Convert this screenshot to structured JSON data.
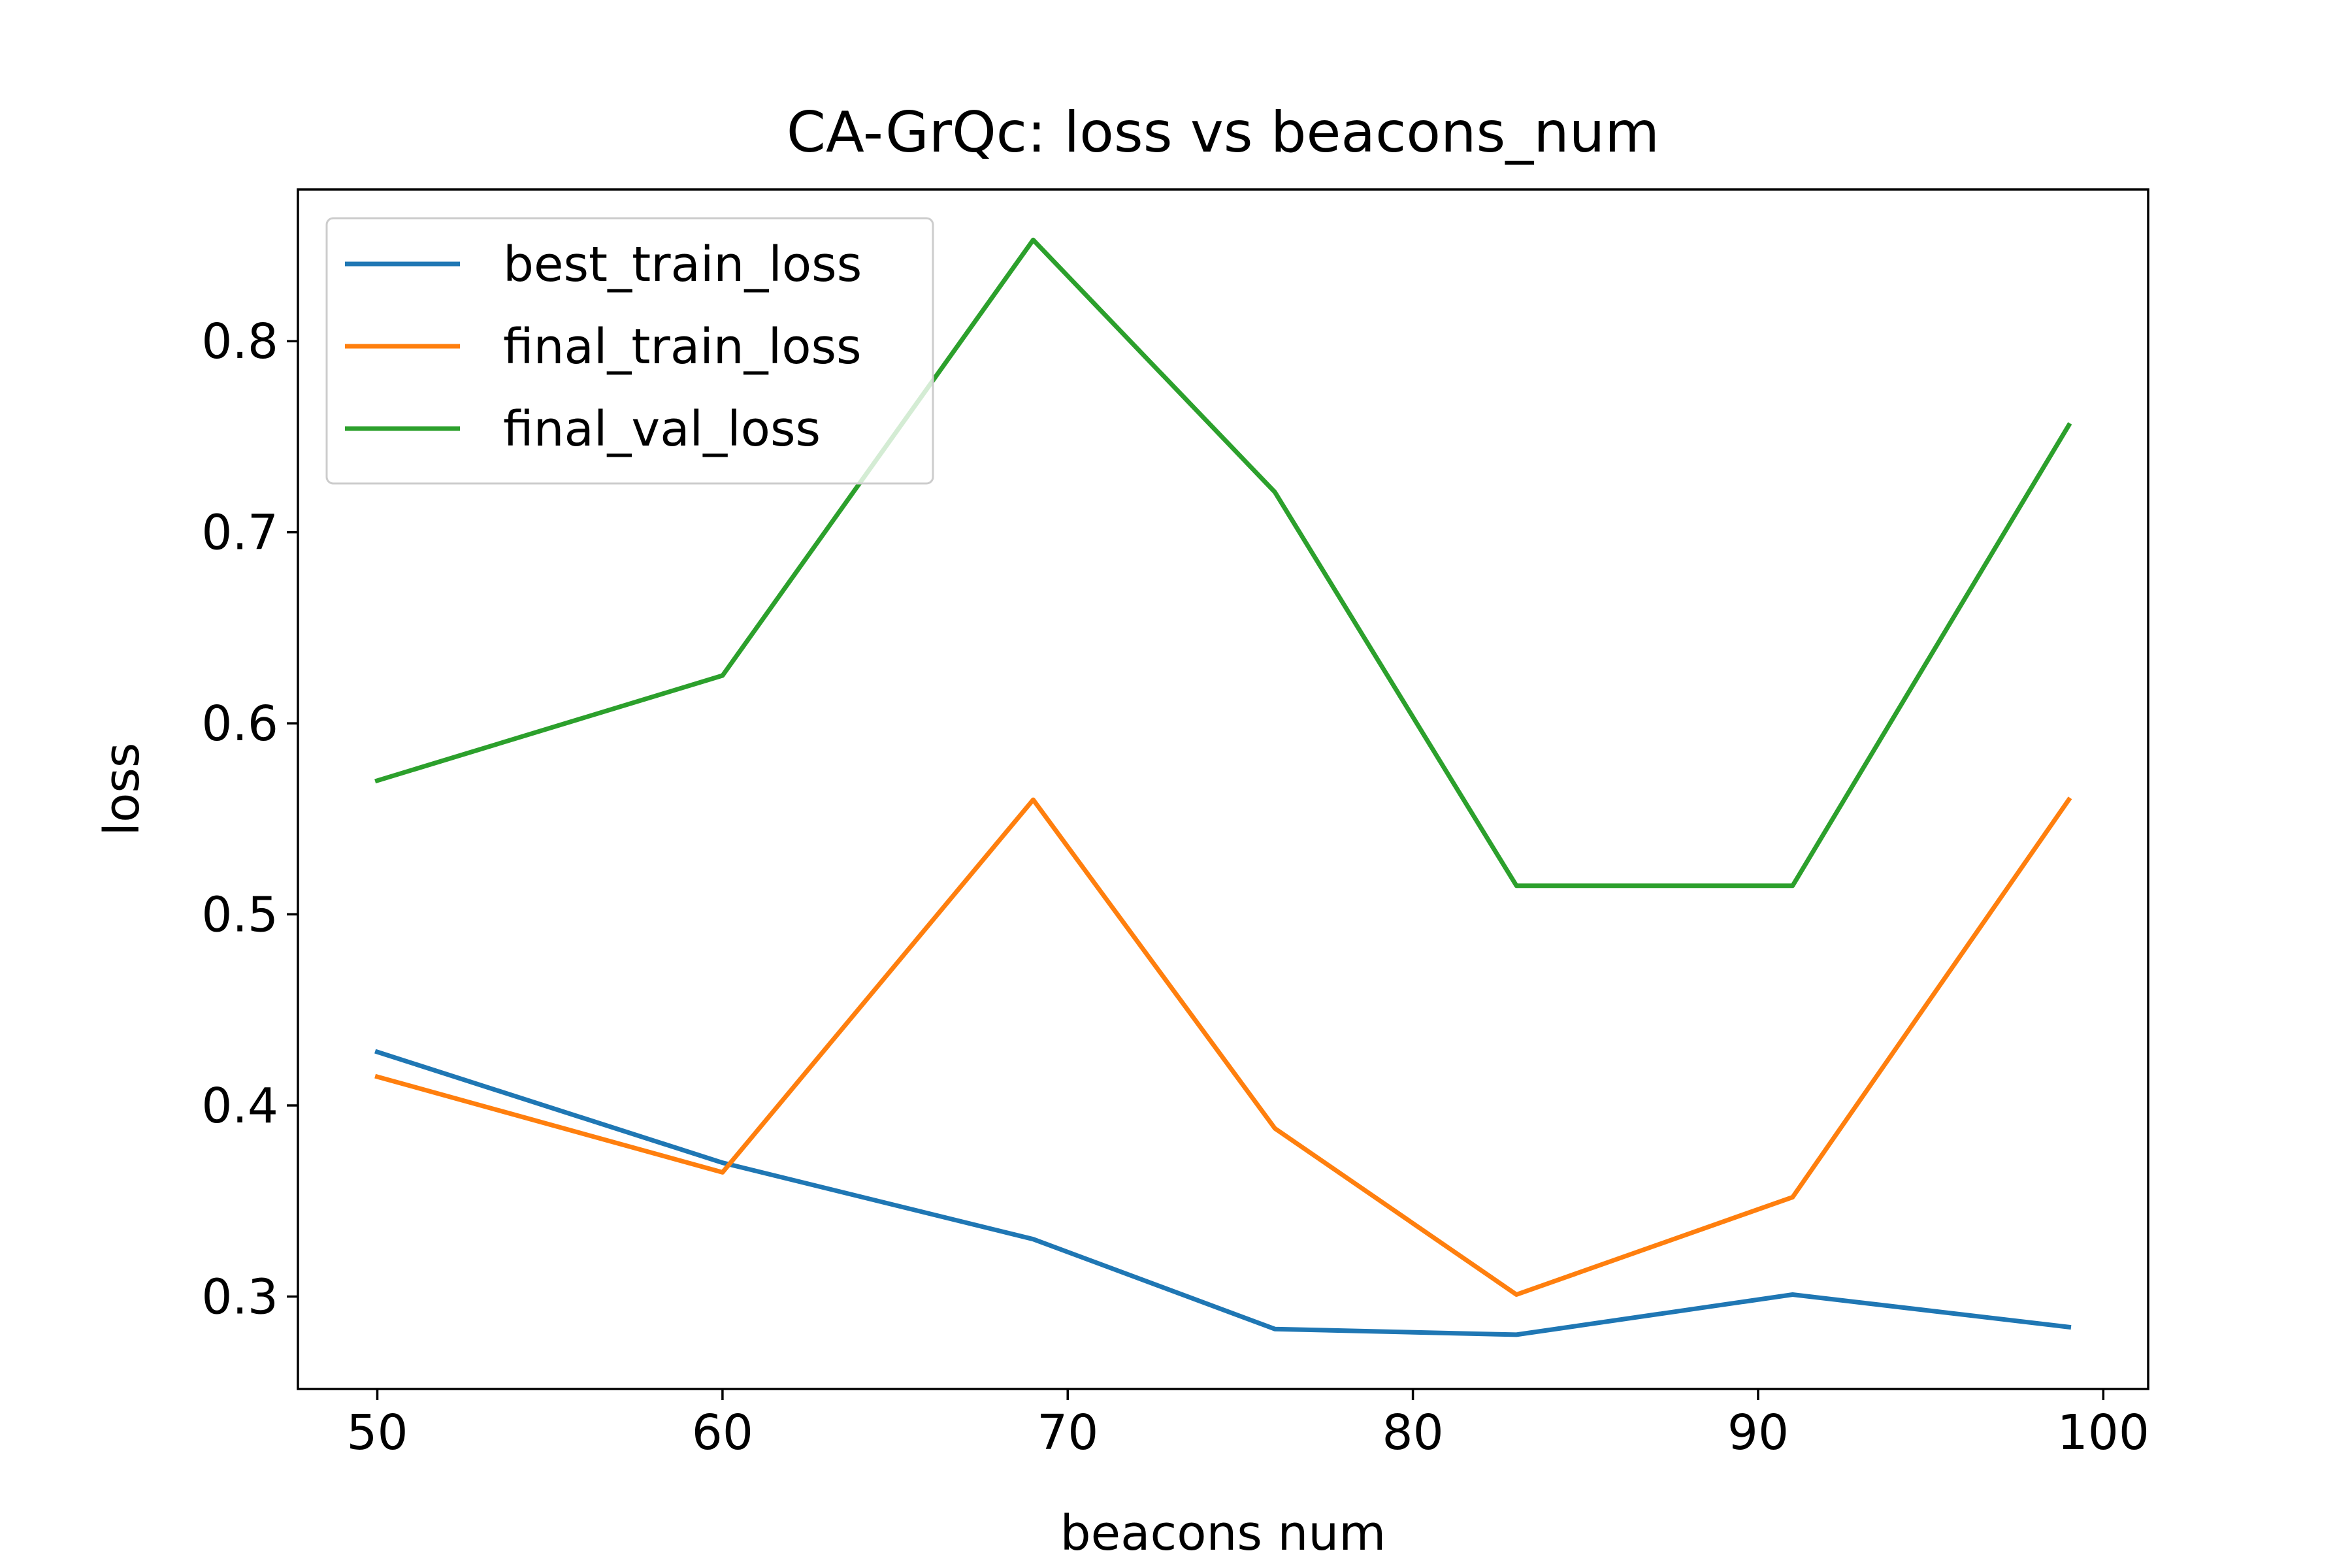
{
  "chart_data": {
    "type": "line",
    "title": "CA-GrQc: loss vs beacons_num",
    "xlabel": "beacons num",
    "ylabel": "loss",
    "xlim": [
      47.7,
      101.3
    ],
    "ylim": [
      0.2516,
      0.8794
    ],
    "xticks": [
      50,
      60,
      70,
      80,
      90,
      100
    ],
    "yticks": [
      0.3,
      0.4,
      0.5,
      0.6,
      0.7,
      0.8
    ],
    "xtick_labels": [
      "50",
      "60",
      "70",
      "80",
      "90",
      "100"
    ],
    "ytick_labels": [
      "0.3",
      "0.4",
      "0.5",
      "0.6",
      "0.7",
      "0.8"
    ],
    "grid": false,
    "legend_position": "upper-left",
    "x": [
      50,
      60,
      69,
      76,
      83,
      91,
      99
    ],
    "series": [
      {
        "name": "best_train_loss",
        "color": "#1f77b4",
        "values": [
          0.428,
          0.37,
          0.33,
          0.283,
          0.28,
          0.301,
          0.284
        ]
      },
      {
        "name": "final_train_loss",
        "color": "#ff7f0e",
        "values": [
          0.415,
          0.365,
          0.56,
          0.388,
          0.301,
          0.352,
          0.56
        ]
      },
      {
        "name": "final_val_loss",
        "color": "#2ca02c",
        "values": [
          0.57,
          0.625,
          0.853,
          0.721,
          0.515,
          0.515,
          0.756
        ]
      }
    ]
  }
}
